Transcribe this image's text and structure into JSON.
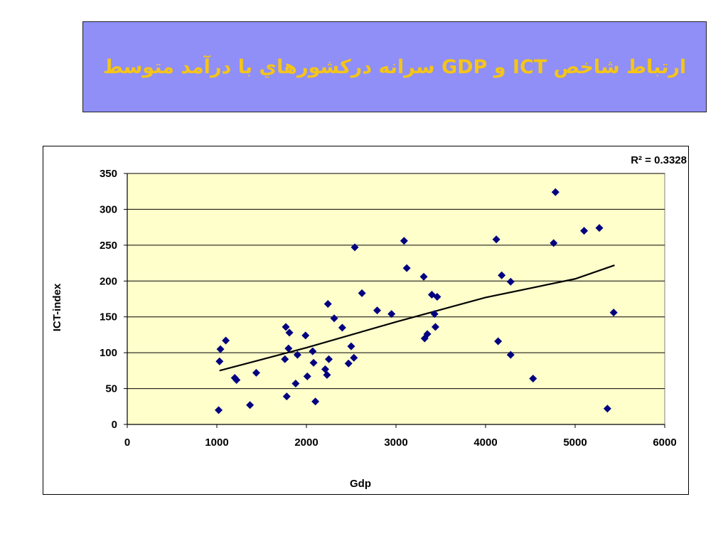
{
  "slide": {
    "title": "ارتباط شاخص ICT و GDP سرانه درکشورهاي با درآمد متوسط",
    "colors": {
      "title_bg": "#8f8ff7",
      "title_text": "#f5c518",
      "plot_bg": "#ffffcc",
      "marker": "#000080",
      "trend": "#000000"
    }
  },
  "chart_data": {
    "type": "scatter",
    "title": "",
    "xlabel": "Gdp",
    "ylabel": "ICT-index",
    "xlim": [
      0,
      6000
    ],
    "ylim": [
      0,
      350
    ],
    "xticks": [
      0,
      1000,
      2000,
      3000,
      4000,
      5000,
      6000
    ],
    "yticks": [
      0,
      50,
      100,
      150,
      200,
      250,
      300,
      350
    ],
    "grid": "horizontal",
    "annotation": "R² = 0.3328",
    "trendline": {
      "type": "polynomial",
      "points": [
        [
          1030,
          75
        ],
        [
          2000,
          107
        ],
        [
          3000,
          143
        ],
        [
          4000,
          177
        ],
        [
          5000,
          203
        ],
        [
          5440,
          222
        ]
      ]
    },
    "points": [
      [
        1020,
        20
      ],
      [
        1030,
        88
      ],
      [
        1040,
        105
      ],
      [
        1100,
        117
      ],
      [
        1200,
        65
      ],
      [
        1220,
        62
      ],
      [
        1370,
        27
      ],
      [
        1440,
        72
      ],
      [
        1760,
        91
      ],
      [
        1770,
        136
      ],
      [
        1780,
        39
      ],
      [
        1800,
        106
      ],
      [
        1810,
        128
      ],
      [
        1880,
        57
      ],
      [
        1900,
        97
      ],
      [
        1990,
        124
      ],
      [
        2010,
        67
      ],
      [
        2070,
        102
      ],
      [
        2080,
        86
      ],
      [
        2100,
        32
      ],
      [
        2210,
        77
      ],
      [
        2230,
        69
      ],
      [
        2240,
        168
      ],
      [
        2250,
        91
      ],
      [
        2310,
        148
      ],
      [
        2400,
        135
      ],
      [
        2470,
        85
      ],
      [
        2500,
        109
      ],
      [
        2530,
        93
      ],
      [
        2540,
        247
      ],
      [
        2620,
        183
      ],
      [
        2790,
        159
      ],
      [
        2950,
        154
      ],
      [
        3090,
        256
      ],
      [
        3120,
        218
      ],
      [
        3310,
        206
      ],
      [
        3320,
        120
      ],
      [
        3350,
        126
      ],
      [
        3400,
        181
      ],
      [
        3430,
        154
      ],
      [
        3440,
        136
      ],
      [
        3460,
        178
      ],
      [
        4120,
        258
      ],
      [
        4140,
        116
      ],
      [
        4180,
        208
      ],
      [
        4280,
        199
      ],
      [
        4280,
        97
      ],
      [
        4530,
        64
      ],
      [
        4760,
        253
      ],
      [
        4780,
        324
      ],
      [
        5100,
        270
      ],
      [
        5270,
        274
      ],
      [
        5360,
        22
      ],
      [
        5430,
        156
      ]
    ]
  }
}
